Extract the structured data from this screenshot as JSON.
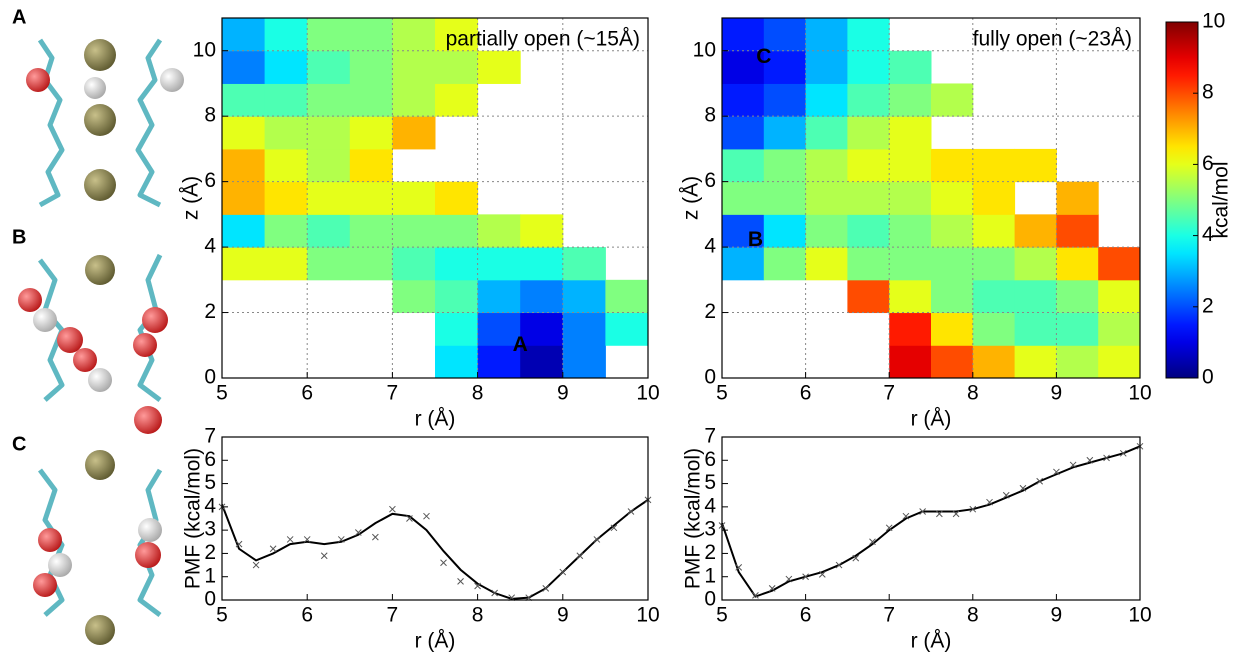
{
  "panels": [
    "A",
    "B",
    "C"
  ],
  "chart_data": [
    {
      "type": "contour",
      "title": "partially open (~15Å)",
      "xlabel": "r (Å)",
      "ylabel": "z (Å)",
      "xlim": [
        5,
        10
      ],
      "ylim": [
        0,
        11
      ],
      "xticks": [
        5,
        6,
        7,
        8,
        9,
        10
      ],
      "yticks": [
        0,
        2,
        4,
        6,
        8,
        10
      ],
      "grid": true,
      "colormap": "jet",
      "x": [
        5.25,
        5.75,
        6.25,
        6.75,
        7.25,
        7.75,
        8.25,
        8.75,
        9.25,
        9.75
      ],
      "y": [
        0.5,
        1.5,
        2.5,
        3.5,
        4.5,
        5.5,
        6.5,
        7.5,
        8.5,
        9.5,
        10.5
      ],
      "z": [
        [
          null,
          null,
          null,
          null,
          null,
          3.5,
          1.5,
          0.5,
          2.5,
          null
        ],
        [
          null,
          null,
          null,
          null,
          null,
          4,
          2,
          1,
          2.5,
          4
        ],
        [
          null,
          null,
          null,
          null,
          5,
          4.5,
          3,
          2.5,
          3,
          5
        ],
        [
          6,
          6,
          5,
          5,
          4.5,
          4,
          4,
          4,
          4.5,
          null
        ],
        [
          3.5,
          5,
          4.5,
          5,
          5,
          5,
          5.5,
          6,
          null,
          null
        ],
        [
          7,
          6.5,
          6,
          6,
          6,
          6.5,
          null,
          null,
          null,
          null
        ],
        [
          7,
          6,
          5.5,
          6.5,
          null,
          null,
          null,
          null,
          null,
          null
        ],
        [
          6,
          5.5,
          5.5,
          6,
          7,
          null,
          null,
          null,
          null,
          null
        ],
        [
          4.5,
          4.5,
          5,
          5,
          5.5,
          6,
          null,
          null,
          null,
          null
        ],
        [
          2.5,
          3.5,
          4.5,
          5,
          5.5,
          5.5,
          6,
          null,
          null,
          null
        ],
        [
          3,
          4,
          5,
          5,
          5.5,
          6,
          null,
          null,
          null,
          null
        ]
      ],
      "annotations": [
        {
          "text": "A",
          "x": 8.5,
          "y": 1
        }
      ]
    },
    {
      "type": "contour",
      "title": "fully open (~23Å)",
      "xlabel": "r (Å)",
      "ylabel": "z (Å)",
      "xlim": [
        5,
        10
      ],
      "ylim": [
        0,
        11
      ],
      "xticks": [
        5,
        6,
        7,
        8,
        9,
        10
      ],
      "yticks": [
        0,
        2,
        4,
        6,
        8,
        10
      ],
      "grid": true,
      "colormap": "jet",
      "x": [
        5.25,
        5.75,
        6.25,
        6.75,
        7.25,
        7.75,
        8.25,
        8.75,
        9.25,
        9.75
      ],
      "y": [
        0.5,
        1.5,
        2.5,
        3.5,
        4.5,
        5.5,
        6.5,
        7.5,
        8.5,
        9.5,
        10.5
      ],
      "z": [
        [
          null,
          null,
          null,
          null,
          9,
          8,
          7,
          6,
          5.5,
          6
        ],
        [
          null,
          null,
          null,
          null,
          8.5,
          6.5,
          5,
          4.5,
          4.5,
          5.5
        ],
        [
          null,
          null,
          null,
          8,
          6,
          5,
          4.5,
          4.5,
          5,
          6
        ],
        [
          3,
          5,
          6,
          5,
          5,
          5,
          5,
          5.5,
          6.5,
          8
        ],
        [
          2,
          3.5,
          5,
          4.5,
          5,
          5.5,
          6,
          7,
          8,
          null
        ],
        [
          5,
          5,
          5.5,
          5.5,
          5.5,
          6,
          6.5,
          null,
          7,
          null
        ],
        [
          4.5,
          5,
          5.5,
          6,
          6,
          6.5,
          6.5,
          6.5,
          null,
          null
        ],
        [
          2,
          3,
          4.5,
          5.5,
          6,
          null,
          null,
          null,
          null,
          null
        ],
        [
          1.5,
          2,
          3.5,
          4.5,
          5,
          5.5,
          null,
          null,
          null,
          null
        ],
        [
          1,
          1.5,
          3,
          4,
          4.5,
          null,
          null,
          null,
          null,
          null
        ],
        [
          1.5,
          2,
          3,
          4,
          null,
          null,
          null,
          null,
          null,
          null
        ]
      ],
      "annotations": [
        {
          "text": "B",
          "x": 5.4,
          "y": 4.2
        },
        {
          "text": "C",
          "x": 5.5,
          "y": 9.8
        }
      ],
      "colorbar": {
        "label": "kcal/mol",
        "lim": [
          0,
          10
        ],
        "ticks": [
          0,
          2,
          4,
          6,
          8,
          10
        ]
      }
    },
    {
      "type": "line",
      "xlabel": "r (Å)",
      "ylabel": "PMF (kcal/mol)",
      "xlim": [
        5,
        10
      ],
      "ylim": [
        0,
        7
      ],
      "xticks": [
        5,
        6,
        7,
        8,
        9,
        10
      ],
      "yticks": [
        0,
        1,
        2,
        3,
        4,
        5,
        6,
        7
      ],
      "grid": false,
      "x": [
        5,
        5.2,
        5.4,
        5.6,
        5.8,
        6,
        6.2,
        6.4,
        6.6,
        6.8,
        7,
        7.2,
        7.4,
        7.6,
        7.8,
        8,
        8.2,
        8.4,
        8.6,
        8.8,
        9,
        9.2,
        9.4,
        9.6,
        9.8,
        10
      ],
      "series": [
        {
          "style": "line",
          "color": "#000000",
          "values": [
            4.1,
            2.2,
            1.7,
            2.0,
            2.4,
            2.5,
            2.4,
            2.5,
            2.8,
            3.3,
            3.7,
            3.6,
            3.0,
            2.1,
            1.3,
            0.7,
            0.3,
            0.05,
            0.1,
            0.5,
            1.2,
            1.9,
            2.6,
            3.2,
            3.8,
            4.3
          ]
        },
        {
          "style": "marker",
          "color": "#555555",
          "values": [
            4.0,
            2.4,
            1.5,
            2.2,
            2.6,
            2.6,
            1.9,
            2.6,
            2.9,
            2.7,
            3.9,
            3.5,
            3.6,
            1.6,
            0.8,
            0.6,
            0.3,
            0.1,
            0.1,
            0.5,
            1.2,
            1.9,
            2.6,
            3.1,
            3.8,
            4.3
          ]
        }
      ]
    },
    {
      "type": "line",
      "xlabel": "r (Å)",
      "ylabel": "PMF (kcal/mol)",
      "xlim": [
        5,
        10
      ],
      "ylim": [
        0,
        7
      ],
      "xticks": [
        5,
        6,
        7,
        8,
        9,
        10
      ],
      "yticks": [
        0,
        1,
        2,
        3,
        4,
        5,
        6,
        7
      ],
      "grid": false,
      "x": [
        5,
        5.2,
        5.4,
        5.6,
        5.8,
        6,
        6.2,
        6.4,
        6.6,
        6.8,
        7,
        7.2,
        7.4,
        7.6,
        7.8,
        8,
        8.2,
        8.4,
        8.6,
        8.8,
        9,
        9.2,
        9.4,
        9.6,
        9.8,
        10
      ],
      "series": [
        {
          "style": "line",
          "color": "#000000",
          "values": [
            3.3,
            1.2,
            0.15,
            0.4,
            0.8,
            1.0,
            1.2,
            1.5,
            1.9,
            2.4,
            3.0,
            3.5,
            3.8,
            3.8,
            3.8,
            3.9,
            4.1,
            4.4,
            4.7,
            5.1,
            5.4,
            5.7,
            5.9,
            6.1,
            6.3,
            6.6
          ]
        },
        {
          "style": "marker",
          "color": "#555555",
          "values": [
            3.2,
            1.4,
            0.2,
            0.5,
            0.9,
            1.0,
            1.1,
            1.5,
            1.8,
            2.5,
            3.1,
            3.6,
            3.8,
            3.7,
            3.7,
            3.9,
            4.2,
            4.5,
            4.8,
            5.1,
            5.5,
            5.8,
            6.0,
            6.1,
            6.3,
            6.6
          ]
        }
      ]
    }
  ]
}
